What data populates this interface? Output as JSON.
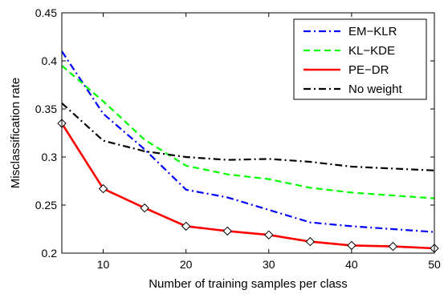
{
  "chart_data": {
    "type": "line",
    "title": "",
    "xlabel": "Number of training samples per class",
    "ylabel": "Misclassification rate",
    "x": [
      5,
      10,
      15,
      20,
      25,
      30,
      35,
      40,
      45,
      50
    ],
    "xlim": [
      5,
      50
    ],
    "ylim": [
      0.2,
      0.45
    ],
    "xticks": [
      10,
      20,
      30,
      40,
      50
    ],
    "yticks": [
      0.2,
      0.25,
      0.3,
      0.35,
      0.4,
      0.45
    ],
    "xtick_labels": [
      "10",
      "20",
      "30",
      "40",
      "50"
    ],
    "ytick_labels": [
      "0.2",
      "0.25",
      "0.3",
      "0.35",
      "0.4",
      "0.45"
    ],
    "grid": false,
    "legend_position": "top-right",
    "series": [
      {
        "name": "EM−KLR",
        "color": "#0000ff",
        "style": "dash-dot",
        "values": [
          0.41,
          0.345,
          0.308,
          0.266,
          0.258,
          0.245,
          0.232,
          0.228,
          0.225,
          0.222
        ]
      },
      {
        "name": "KL−KDE",
        "color": "#00ff00",
        "style": "dashed",
        "values": [
          0.395,
          0.358,
          0.318,
          0.291,
          0.282,
          0.277,
          0.268,
          0.263,
          0.26,
          0.257
        ]
      },
      {
        "name": "PE−DR",
        "color": "#ff0000",
        "style": "solid",
        "marker": "diamond",
        "values": [
          0.335,
          0.267,
          0.247,
          0.228,
          0.223,
          0.219,
          0.212,
          0.208,
          0.207,
          0.205
        ]
      },
      {
        "name": "No weight",
        "color": "#000000",
        "style": "dash-dot",
        "values": [
          0.356,
          0.317,
          0.306,
          0.3,
          0.297,
          0.298,
          0.295,
          0.29,
          0.288,
          0.286
        ]
      }
    ]
  }
}
